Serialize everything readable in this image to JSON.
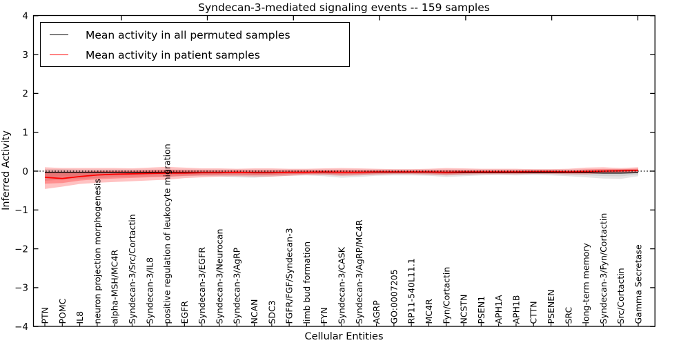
{
  "chart_data": {
    "type": "line",
    "title": "Syndecan-3-mediated signaling events -- 159 samples",
    "xlabel": "Cellular Entities",
    "ylabel": "Inferred Activity",
    "ylim": [
      -4,
      4
    ],
    "yticks": [
      4,
      3,
      2,
      1,
      0,
      -1,
      -2,
      -3,
      -4
    ],
    "grid": false,
    "legend_position": "upper left",
    "zero_line": {
      "y": 0,
      "style": "dotted",
      "color": "#000000"
    },
    "legend": [
      {
        "label": "Mean activity in all permuted samples",
        "color": "#000000"
      },
      {
        "label": "Mean activity in patient samples",
        "color": "#ff0000"
      }
    ],
    "categories": [
      "PTN",
      "POMC",
      "IL8",
      "neuron projection morphogenesis",
      "alpha-MSH/MC4R",
      "Syndecan-3/Src/Cortactin",
      "Syndecan-3/IL8",
      "positive regulation of leukocyte migration",
      "EGFR",
      "Syndecan-3/EGFR",
      "Syndecan-3/Neurocan",
      "Syndecan-3/AgRP",
      "NCAN",
      "SDC3",
      "FGFR/FGF/Syndecan-3",
      "limb bud formation",
      "FYN",
      "Syndecan-3/CASK",
      "Syndecan-3/AgRP/MC4R",
      "AGRP",
      "GO:0007205",
      "RP11-540L11.1",
      "MC4R",
      "Fyn/Cortactin",
      "NCSTN",
      "PSEN1",
      "APH1A",
      "APH1B",
      "CTTN",
      "PSENEN",
      "SRC",
      "long-term memory",
      "Syndecan-3/Fyn/Cortactin",
      "Src/Cortactin",
      "Gamma Secretase"
    ],
    "series": [
      {
        "name": "Mean activity in all permuted samples",
        "color": "#000000",
        "values": [
          -0.03,
          -0.03,
          -0.03,
          -0.03,
          -0.03,
          -0.03,
          -0.03,
          -0.03,
          -0.03,
          -0.03,
          -0.03,
          -0.03,
          -0.03,
          -0.03,
          -0.03,
          -0.03,
          -0.03,
          -0.03,
          -0.03,
          -0.03,
          -0.03,
          -0.03,
          -0.03,
          -0.04,
          -0.04,
          -0.04,
          -0.04,
          -0.04,
          -0.04,
          -0.04,
          -0.04,
          -0.04,
          -0.05,
          -0.05,
          -0.04
        ]
      },
      {
        "name": "Mean activity in patient samples",
        "color": "#ff0000",
        "values": [
          -0.16,
          -0.19,
          -0.14,
          -0.1,
          -0.08,
          -0.07,
          -0.06,
          -0.05,
          -0.05,
          -0.04,
          -0.04,
          -0.03,
          -0.04,
          -0.04,
          -0.03,
          -0.03,
          -0.02,
          -0.03,
          -0.03,
          -0.02,
          -0.02,
          -0.02,
          -0.02,
          -0.03,
          -0.02,
          -0.02,
          -0.02,
          -0.02,
          -0.01,
          -0.01,
          -0.02,
          -0.01,
          0.0,
          0.01,
          0.02
        ]
      }
    ],
    "bands": [
      {
        "name": "permuted-samples-range",
        "color": "#9e9e9e",
        "upper": [
          0.05,
          0.05,
          0.04,
          0.04,
          0.04,
          0.04,
          0.04,
          0.04,
          0.04,
          0.04,
          0.04,
          0.04,
          0.04,
          0.04,
          0.04,
          0.04,
          0.04,
          0.04,
          0.04,
          0.04,
          0.04,
          0.04,
          0.04,
          0.04,
          0.04,
          0.04,
          0.04,
          0.04,
          0.04,
          0.04,
          0.04,
          0.04,
          0.04,
          0.05,
          0.05
        ],
        "lower": [
          -0.25,
          -0.22,
          -0.2,
          -0.18,
          -0.16,
          -0.15,
          -0.14,
          -0.14,
          -0.13,
          -0.12,
          -0.13,
          -0.16,
          -0.17,
          -0.14,
          -0.12,
          -0.11,
          -0.13,
          -0.17,
          -0.15,
          -0.12,
          -0.11,
          -0.11,
          -0.12,
          -0.15,
          -0.13,
          -0.11,
          -0.1,
          -0.11,
          -0.1,
          -0.11,
          -0.13,
          -0.16,
          -0.19,
          -0.2,
          -0.13
        ]
      },
      {
        "name": "patient-samples-range",
        "color": "#ff0000",
        "upper": [
          0.1,
          0.08,
          0.08,
          0.08,
          0.08,
          0.07,
          0.09,
          0.11,
          0.09,
          0.07,
          0.07,
          0.06,
          0.07,
          0.07,
          0.06,
          0.06,
          0.07,
          0.08,
          0.07,
          0.06,
          0.05,
          0.05,
          0.06,
          0.08,
          0.07,
          0.06,
          0.06,
          0.06,
          0.05,
          0.05,
          0.06,
          0.09,
          0.1,
          0.08,
          0.1
        ],
        "lower": [
          -0.46,
          -0.4,
          -0.33,
          -0.3,
          -0.28,
          -0.26,
          -0.24,
          -0.22,
          -0.18,
          -0.16,
          -0.14,
          -0.13,
          -0.14,
          -0.14,
          -0.12,
          -0.1,
          -0.1,
          -0.12,
          -0.11,
          -0.09,
          -0.08,
          -0.08,
          -0.09,
          -0.11,
          -0.09,
          -0.08,
          -0.08,
          -0.08,
          -0.07,
          -0.07,
          -0.08,
          -0.08,
          -0.06,
          -0.04,
          -0.03
        ]
      }
    ]
  }
}
